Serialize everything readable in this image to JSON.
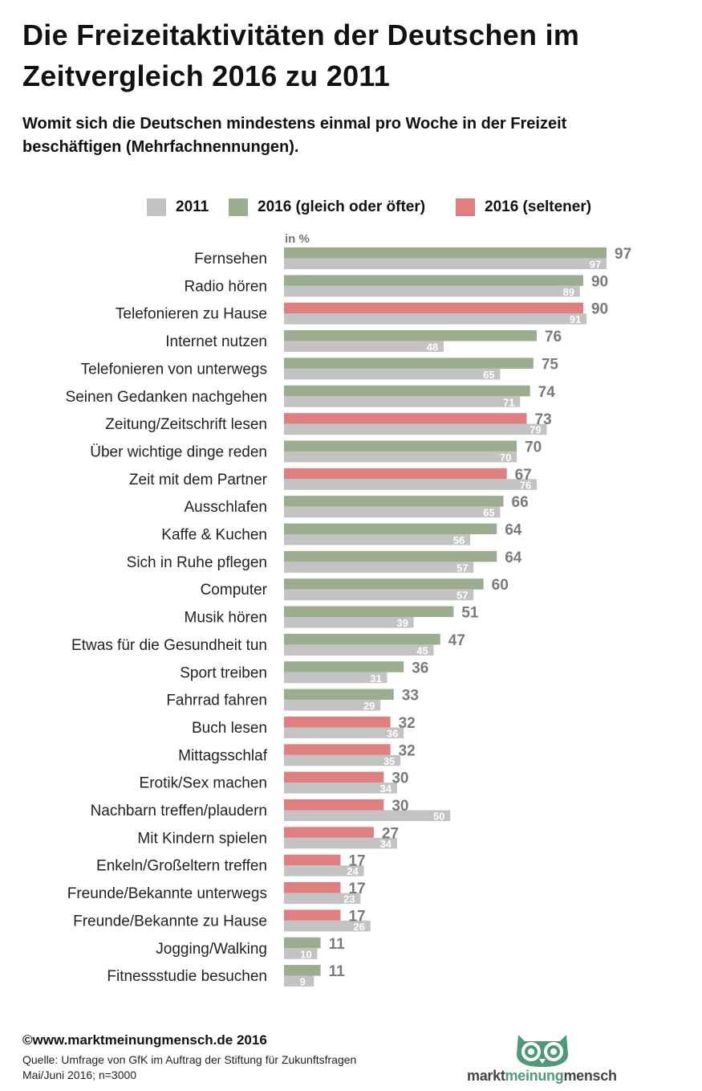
{
  "title": "Die Freizeitaktivitäten der Deutschen im Zeitvergleich 2016 zu 2011",
  "subtitle": "Womit sich die Deutschen mindestens einmal pro Woche in der Freizeit beschäftigen (Mehrfachnennungen).",
  "legend": {
    "s2011": "2011",
    "s2016_up": "2016 (gleich oder öfter)",
    "s2016_down": "2016 (seltener)"
  },
  "unit_label": "in %",
  "colors": {
    "c2011": "#c3c3c3",
    "c2016_up": "#9bad8f",
    "c2016_down": "#df7f7f",
    "brand": "#4e9a76"
  },
  "chart_data": {
    "type": "bar",
    "orientation": "horizontal",
    "xlim": [
      0,
      100
    ],
    "grid": false,
    "legend_position": "top",
    "categories": [
      "Fernsehen",
      "Radio hören",
      "Telefonieren zu Hause",
      "Internet nutzen",
      "Telefonieren von unterwegs",
      "Seinen Gedanken nachgehen",
      "Zeitung/Zeitschrift lesen",
      "Über wichtige dinge reden",
      "Zeit mit dem Partner",
      "Ausschlafen",
      "Kaffe & Kuchen",
      "Sich in Ruhe pflegen",
      "Computer",
      "Musik hören",
      "Etwas für die Gesundheit tun",
      "Sport treiben",
      "Fahrrad fahren",
      "Buch lesen",
      "Mittagsschlaf",
      "Erotik/Sex machen",
      "Nachbarn treffen/plaudern",
      "Mit Kindern spielen",
      "Enkeln/Großeltern treffen",
      "Freunde/Bekannte unterwegs",
      "Freunde/Bekannte zu Hause",
      "Jogging/Walking",
      "Fitnessstudie besuchen"
    ],
    "series": [
      {
        "name": "2016",
        "values": [
          97,
          90,
          90,
          76,
          75,
          74,
          73,
          70,
          67,
          66,
          64,
          64,
          60,
          51,
          47,
          36,
          33,
          32,
          32,
          30,
          30,
          27,
          17,
          17,
          17,
          11,
          11
        ]
      },
      {
        "name": "2011",
        "values": [
          97,
          89,
          91,
          48,
          65,
          71,
          79,
          70,
          76,
          65,
          56,
          57,
          57,
          39,
          45,
          31,
          29,
          36,
          35,
          34,
          50,
          34,
          24,
          23,
          26,
          10,
          9
        ]
      }
    ]
  },
  "footer": {
    "copyright": "©www.marktmeinungmensch.de 2016",
    "source_line1": "Quelle: Umfrage von GfK im Auftrag der Stiftung für Zukunftsfragen",
    "source_line2": "Mai/Juni 2016; n=3000"
  },
  "logo": {
    "part1": "markt",
    "part2": "meinung",
    "part3": "mensch",
    "icon": "owl-icon"
  }
}
